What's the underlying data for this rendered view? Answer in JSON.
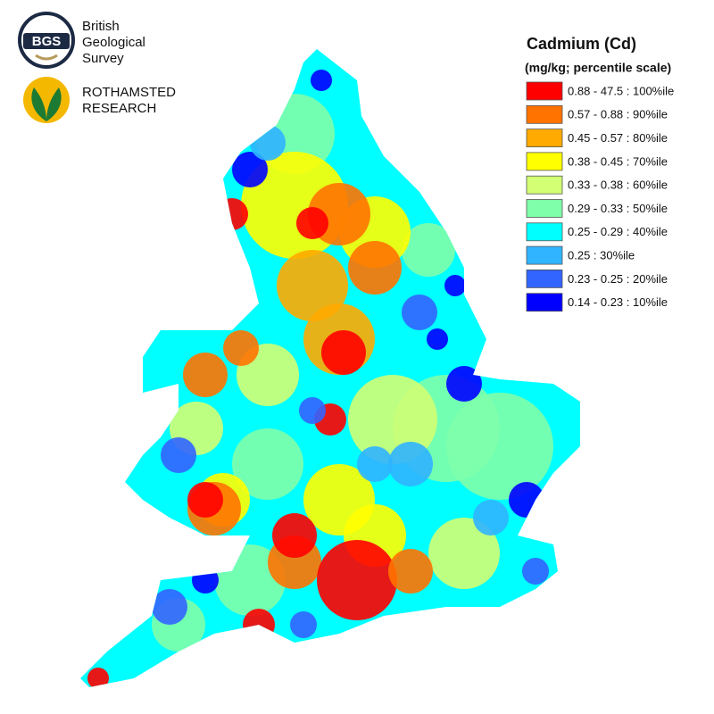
{
  "logos": [
    {
      "badge": "BGS",
      "lines": [
        "British",
        "Geological",
        "Survey"
      ]
    },
    {
      "lines": [
        "ROTHAMSTED",
        "RESEARCH"
      ]
    }
  ],
  "legend": {
    "title": "Cadmium (Cd)",
    "subtitle": "(mg/kg; percentile scale)",
    "items": [
      {
        "label": "0.88 - 47.5 : 100%ile",
        "color": "#ff0000"
      },
      {
        "label": "0.57 - 0.88 : 90%ile",
        "color": "#ff7300"
      },
      {
        "label": "0.45 - 0.57 : 80%ile",
        "color": "#ffaa00"
      },
      {
        "label": "0.38 - 0.45 : 70%ile",
        "color": "#ffff00"
      },
      {
        "label": "0.33 - 0.38 : 60%ile",
        "color": "#d2ff73"
      },
      {
        "label": "0.29 - 0.33 : 50%ile",
        "color": "#80ffaa"
      },
      {
        "label": "0.25 - 0.29 : 40%ile",
        "color": "#00ffff"
      },
      {
        "label": "0.25 : 30%ile",
        "color": "#30b4ff"
      },
      {
        "label": "0.23 - 0.25 : 20%ile",
        "color": "#3264ff"
      },
      {
        "label": "0.14 - 0.23 : 10%ile",
        "color": "#0000ff"
      }
    ]
  }
}
